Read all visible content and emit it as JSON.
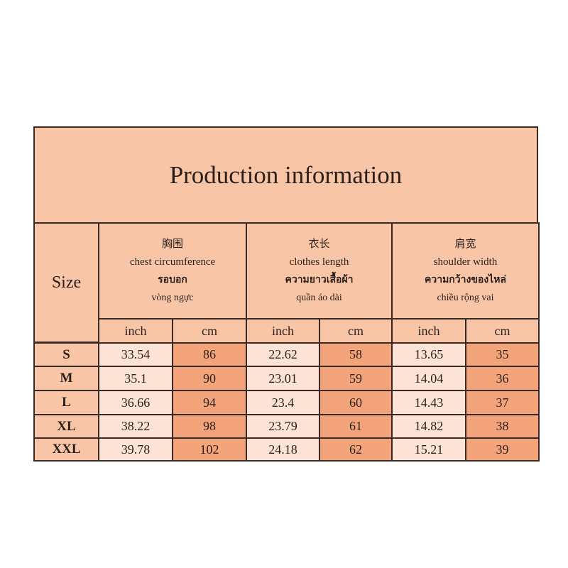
{
  "title": "Production information",
  "size_label": "Size",
  "columns": [
    {
      "chinese": "胸围",
      "english": "chest circumference",
      "thai": "รอบอก",
      "vietnamese": "vòng ngực"
    },
    {
      "chinese": "衣长",
      "english": "clothes length",
      "thai": "ความยาวเสื้อผ้า",
      "vietnamese": "quần áo dài"
    },
    {
      "chinese": "肩宽",
      "english": "shoulder width",
      "thai": "ความกว้างของไหล่",
      "vietnamese": "chiều rộng vai"
    }
  ],
  "units": [
    "inch",
    "cm",
    "inch",
    "cm",
    "inch",
    "cm"
  ],
  "rows": [
    {
      "size": "S",
      "values": [
        33.54,
        86,
        22.62,
        58,
        13.65,
        35
      ]
    },
    {
      "size": "M",
      "values": [
        35.1,
        90,
        23.01,
        59,
        14.04,
        36
      ]
    },
    {
      "size": "L",
      "values": [
        36.66,
        94,
        23.4,
        60,
        14.43,
        37
      ]
    },
    {
      "size": "XL",
      "values": [
        38.22,
        98,
        23.79,
        61,
        14.82,
        38
      ]
    },
    {
      "size": "XXL",
      "values": [
        39.78,
        102,
        24.18,
        62,
        15.21,
        39
      ]
    }
  ]
}
